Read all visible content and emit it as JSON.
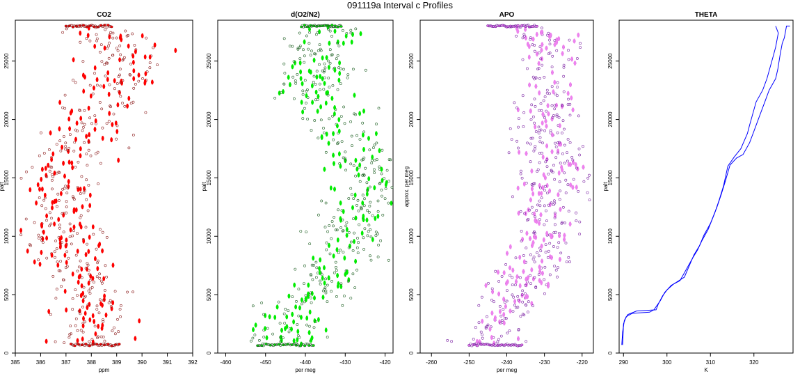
{
  "figure": {
    "title": "091119a   Interval c Profiles"
  },
  "chart_data": [
    {
      "type": "scatter",
      "title": "CO2",
      "xlabel": "ppm",
      "ylabel": "palt",
      "xlim": [
        385,
        392
      ],
      "ylim": [
        0,
        28500
      ],
      "xticks": [
        385,
        386,
        387,
        388,
        389,
        390,
        391,
        392
      ],
      "yticks": [
        0,
        5000,
        10000,
        15000,
        20000,
        25000
      ],
      "color": "#ff0000",
      "outline_color": "#8b1a1a",
      "profile": [
        [
          388.0,
          700
        ],
        [
          388.0,
          2000
        ],
        [
          387.9,
          3500
        ],
        [
          387.9,
          5000
        ],
        [
          387.6,
          6500
        ],
        [
          387.4,
          8000
        ],
        [
          387.0,
          9500
        ],
        [
          387.0,
          11000
        ],
        [
          386.8,
          12500
        ],
        [
          386.8,
          14000
        ],
        [
          386.9,
          15500
        ],
        [
          387.2,
          17000
        ],
        [
          387.8,
          18500
        ],
        [
          388.2,
          20000
        ],
        [
          388.3,
          21000
        ],
        [
          388.8,
          22500
        ],
        [
          389.2,
          24000
        ],
        [
          389.4,
          25500
        ],
        [
          389.0,
          27000
        ],
        [
          388.0,
          28000
        ]
      ],
      "spread": 1.6,
      "series": [
        {
          "name": "",
          "points": [
            [
              387.0,
              28000
            ],
            [
              388.0,
              28000
            ],
            [
              388.8,
              28000
            ],
            [
              387.2,
              700
            ],
            [
              388.3,
              700
            ],
            [
              389.1,
              700
            ]
          ]
        }
      ]
    },
    {
      "type": "scatter",
      "title": "d(O2/N2)",
      "xlabel": "per meg",
      "ylabel": "palt",
      "xlim": [
        -462,
        -418
      ],
      "ylim": [
        0,
        28500
      ],
      "xticks": [
        -460,
        -450,
        -440,
        -430,
        -420
      ],
      "yticks": [
        0,
        5000,
        10000,
        15000,
        20000,
        25000
      ],
      "color": "#00ee00",
      "outline_color": "#1b5e20",
      "profile": [
        [
          -447,
          700
        ],
        [
          -446,
          2000
        ],
        [
          -443,
          3500
        ],
        [
          -438,
          5000
        ],
        [
          -434,
          6500
        ],
        [
          -431,
          8000
        ],
        [
          -428,
          9500
        ],
        [
          -427,
          11000
        ],
        [
          -425,
          12500
        ],
        [
          -424,
          14000
        ],
        [
          -424,
          15500
        ],
        [
          -426,
          17000
        ],
        [
          -430,
          18500
        ],
        [
          -433,
          20000
        ],
        [
          -435,
          21000
        ],
        [
          -438,
          22500
        ],
        [
          -437,
          24000
        ],
        [
          -437,
          25500
        ],
        [
          -436,
          27000
        ],
        [
          -436,
          28000
        ]
      ],
      "spread": 10,
      "series": [
        {
          "name": "",
          "points": [
            [
              -441,
              28000
            ],
            [
              -436,
              28000
            ],
            [
              -431,
              28000
            ],
            [
              -452,
              700
            ],
            [
              -445,
              700
            ],
            [
              -438,
              700
            ]
          ]
        }
      ]
    },
    {
      "type": "scatter",
      "title": "APO",
      "xlabel": "per meg",
      "ylabel": "approx. per meg",
      "xlim": [
        -263,
        -217
      ],
      "ylim": [
        0,
        28500
      ],
      "xticks": [
        -260,
        -250,
        -240,
        -230,
        -220
      ],
      "yticks": [
        0,
        5000,
        10000,
        15000,
        20000,
        25000
      ],
      "color": "#ee82ee",
      "outline_color": "#7a1fa2",
      "profile": [
        [
          -245,
          700
        ],
        [
          -243,
          2000
        ],
        [
          -240,
          3500
        ],
        [
          -237,
          5000
        ],
        [
          -234,
          6500
        ],
        [
          -232,
          8000
        ],
        [
          -230,
          9500
        ],
        [
          -229,
          11000
        ],
        [
          -229,
          12500
        ],
        [
          -228,
          14000
        ],
        [
          -228,
          15500
        ],
        [
          -229,
          17000
        ],
        [
          -229,
          18500
        ],
        [
          -229,
          20000
        ],
        [
          -229,
          21000
        ],
        [
          -229,
          22500
        ],
        [
          -229,
          24000
        ],
        [
          -229,
          25500
        ],
        [
          -229,
          27000
        ],
        [
          -233,
          28000
        ]
      ],
      "spread": 9,
      "series": [
        {
          "name": "",
          "points": [
            [
              -245,
              28000
            ],
            [
              -238,
              28000
            ],
            [
              -232,
              28000
            ],
            [
              -250,
              700
            ],
            [
              -243,
              700
            ],
            [
              -236,
              700
            ]
          ]
        }
      ]
    },
    {
      "type": "line",
      "title": "THETA",
      "xlabel": "K",
      "ylabel": "palt",
      "xlim": [
        289,
        329
      ],
      "ylim": [
        0,
        28500
      ],
      "xticks": [
        290,
        300,
        310,
        320
      ],
      "yticks": [
        0,
        5000,
        10000,
        15000,
        20000,
        25000
      ],
      "color": "#0000ff",
      "series": [
        {
          "name": "",
          "x": [
            289.8,
            289.9,
            290.0,
            290.6,
            292.0,
            296.0,
            297.0,
            298.5,
            299.5,
            301.0,
            303.0,
            306.0,
            307.0,
            308.0,
            309.5,
            311.0,
            312.0,
            313.0,
            314.0,
            315.5,
            317.0,
            318.5,
            319.0,
            320.5,
            322.0,
            323.0,
            324.5,
            325.0,
            325.6,
            325.0
          ],
          "y": [
            700,
            1500,
            2500,
            3100,
            3400,
            3500,
            3700,
            4500,
            5200,
            5800,
            6200,
            8200,
            8800,
            9600,
            10600,
            12000,
            13100,
            14300,
            16000,
            16800,
            17500,
            18800,
            19500,
            21500,
            22500,
            23500,
            25500,
            26200,
            27400,
            28000
          ]
        },
        {
          "name": "",
          "x": [
            289.6,
            289.8,
            290.2,
            291.0,
            293.0,
            297.5,
            298.0,
            299.0,
            300.0,
            301.5,
            304.0,
            306.2,
            307.5,
            308.5,
            310.0,
            311.5,
            312.5,
            313.5,
            314.5,
            316.0,
            317.5,
            319.0,
            320.0,
            321.5,
            322.5,
            323.5,
            325.0,
            325.5,
            326.0,
            326.5,
            327.0,
            327.5,
            328.3
          ],
          "y": [
            700,
            1800,
            2800,
            3300,
            3600,
            3700,
            4200,
            4900,
            5400,
            5900,
            6500,
            8400,
            9200,
            10100,
            11100,
            12500,
            13600,
            14800,
            16100,
            16700,
            17000,
            18000,
            19000,
            20500,
            21500,
            22500,
            23500,
            24300,
            25500,
            26500,
            27000,
            28000,
            28000
          ]
        }
      ]
    }
  ]
}
